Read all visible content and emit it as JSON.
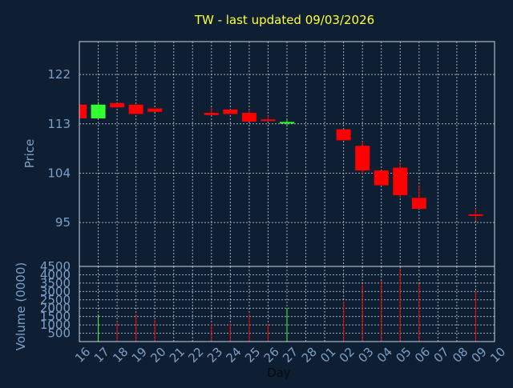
{
  "chart_data": {
    "type": "candlestick",
    "title": "TW - last updated 09/03/2026",
    "xlabel": "Day",
    "ylabel": "Price",
    "volume_label": "Volume (0000)",
    "grid": true,
    "colors": {
      "up": "#33ff33",
      "down": "#ff0000",
      "background": "#0f1f33",
      "title": "#ffff33",
      "axis_text": "#7aa0c8"
    },
    "x_ticks": [
      "16",
      "17",
      "18",
      "19",
      "20",
      "21",
      "22",
      "23",
      "24",
      "25",
      "26",
      "27",
      "28",
      "01",
      "02",
      "03",
      "04",
      "05",
      "06",
      "07",
      "08",
      "09",
      "10"
    ],
    "price_ylim": [
      87,
      128
    ],
    "price_ticks": [
      95,
      104,
      113,
      122
    ],
    "volume_ylim": [
      0,
      4500
    ],
    "volume_ticks": [
      500,
      1000,
      1500,
      2000,
      2500,
      3000,
      3500,
      4000,
      4500
    ],
    "candles": [
      {
        "day": "16",
        "open": 116.5,
        "high": 116.5,
        "low": 114.0,
        "close": 114.0,
        "volume": 0
      },
      {
        "day": "17",
        "open": 114.0,
        "high": 117.0,
        "low": 114.0,
        "close": 116.5,
        "volume": 1600
      },
      {
        "day": "18",
        "open": 116.8,
        "high": 116.8,
        "low": 116.0,
        "close": 116.0,
        "volume": 1200
      },
      {
        "day": "19",
        "open": 116.5,
        "high": 116.5,
        "low": 114.8,
        "close": 114.8,
        "volume": 1650
      },
      {
        "day": "20",
        "open": 115.8,
        "high": 115.8,
        "low": 115.2,
        "close": 115.2,
        "volume": 1300
      },
      {
        "day": "23",
        "open": 115.0,
        "high": 116.0,
        "low": 114.6,
        "close": 114.6,
        "volume": 1050
      },
      {
        "day": "24",
        "open": 115.6,
        "high": 115.6,
        "low": 114.8,
        "close": 114.8,
        "volume": 1100
      },
      {
        "day": "25",
        "open": 115.0,
        "high": 115.6,
        "low": 113.4,
        "close": 113.4,
        "volume": 1650
      },
      {
        "day": "26",
        "open": 113.8,
        "high": 114.5,
        "low": 113.5,
        "close": 113.5,
        "volume": 1050
      },
      {
        "day": "27",
        "open": 113.2,
        "high": 114.0,
        "low": 112.5,
        "close": 113.2,
        "volume": 2000
      },
      {
        "day": "02",
        "open": 112.0,
        "high": 112.0,
        "low": 110.0,
        "close": 110.0,
        "volume": 2400
      },
      {
        "day": "03",
        "open": 109.0,
        "high": 109.8,
        "low": 103.8,
        "close": 104.5,
        "volume": 3400
      },
      {
        "day": "04",
        "open": 104.5,
        "high": 104.5,
        "low": 101.8,
        "close": 101.8,
        "volume": 3650
      },
      {
        "day": "05",
        "open": 105.0,
        "high": 106.0,
        "low": 99.5,
        "close": 100.0,
        "volume": 4400
      },
      {
        "day": "06",
        "open": 99.5,
        "high": 101.8,
        "low": 97.5,
        "close": 97.5,
        "volume": 3450
      },
      {
        "day": "09",
        "open": 96.5,
        "high": 97.5,
        "low": 95.3,
        "close": 96.2,
        "volume": 3000
      }
    ]
  }
}
